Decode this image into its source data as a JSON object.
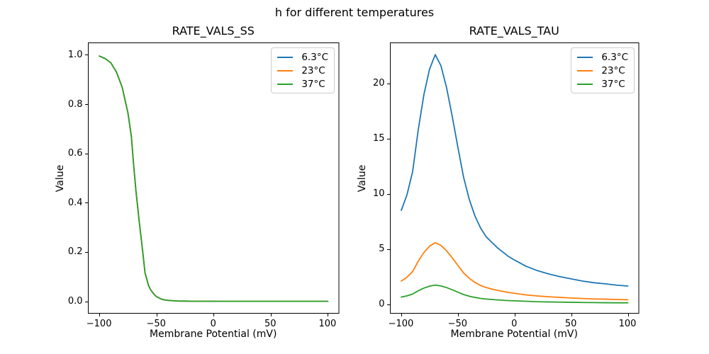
{
  "figure": {
    "suptitle": "h for different temperatures",
    "background": "#ffffff"
  },
  "palette": {
    "series_blue": "#1f77b4",
    "series_orange": "#ff7f0e",
    "series_green": "#2ca02c",
    "axis_color": "#000000",
    "legend_border": "#cccccc"
  },
  "legend": {
    "labels": [
      "6.3°C",
      "23°C",
      "37°C"
    ],
    "position": "upper right"
  },
  "chart_data": [
    {
      "type": "line",
      "title": "RATE_VALS_SS",
      "xlabel": "Membrane Potential (mV)",
      "ylabel": "Value",
      "xlim": [
        -110,
        110
      ],
      "ylim": [
        -0.05,
        1.05
      ],
      "xticks": [
        -100,
        -50,
        0,
        50,
        100
      ],
      "xtick_labels": [
        "−100",
        "−50",
        "0",
        "50",
        "100"
      ],
      "yticks": [
        0.0,
        0.2,
        0.4,
        0.6,
        0.8,
        1.0
      ],
      "ytick_labels": [
        "0.0",
        "0.2",
        "0.4",
        "0.6",
        "0.8",
        "1.0"
      ],
      "grid": false,
      "legend_position": "upper right",
      "note": "all three temperature curves overlap exactly; green drawn on top",
      "x": [
        -100,
        -95,
        -90,
        -85,
        -80,
        -75,
        -72,
        -70,
        -68,
        -65,
        -62,
        -60,
        -57,
        -55,
        -52,
        -50,
        -47,
        -45,
        -42,
        -40,
        -35,
        -30,
        -25,
        -20,
        -15,
        -10,
        -5,
        0,
        10,
        20,
        30,
        40,
        50,
        60,
        70,
        80,
        90,
        100
      ],
      "series": [
        {
          "name": "6.3°C",
          "color": "#1f77b4",
          "values": [
            0.995,
            0.985,
            0.968,
            0.93,
            0.868,
            0.765,
            0.67,
            0.555,
            0.45,
            0.32,
            0.2,
            0.115,
            0.065,
            0.046,
            0.028,
            0.019,
            0.012,
            0.008,
            0.005,
            0.004,
            0.002,
            0.001,
            0.001,
            0.0005,
            0.0003,
            0.0002,
            0.0001,
            0.0001,
            0,
            0,
            0,
            0,
            0,
            0,
            0,
            0,
            0,
            0
          ]
        },
        {
          "name": "23°C",
          "color": "#ff7f0e",
          "values": [
            0.995,
            0.985,
            0.968,
            0.93,
            0.868,
            0.765,
            0.67,
            0.555,
            0.45,
            0.32,
            0.2,
            0.115,
            0.065,
            0.046,
            0.028,
            0.019,
            0.012,
            0.008,
            0.005,
            0.004,
            0.002,
            0.001,
            0.001,
            0.0005,
            0.0003,
            0.0002,
            0.0001,
            0.0001,
            0,
            0,
            0,
            0,
            0,
            0,
            0,
            0,
            0,
            0
          ]
        },
        {
          "name": "37°C",
          "color": "#2ca02c",
          "values": [
            0.995,
            0.985,
            0.968,
            0.93,
            0.868,
            0.765,
            0.67,
            0.555,
            0.45,
            0.32,
            0.2,
            0.115,
            0.065,
            0.046,
            0.028,
            0.019,
            0.012,
            0.008,
            0.005,
            0.004,
            0.002,
            0.001,
            0.001,
            0.0005,
            0.0003,
            0.0002,
            0.0001,
            0.0001,
            0,
            0,
            0,
            0,
            0,
            0,
            0,
            0,
            0,
            0
          ]
        }
      ]
    },
    {
      "type": "line",
      "title": "RATE_VALS_TAU",
      "xlabel": "Membrane Potential (mV)",
      "ylabel": "Value",
      "xlim": [
        -110,
        110
      ],
      "ylim": [
        -0.85,
        23.7
      ],
      "xticks": [
        -100,
        -50,
        0,
        50,
        100
      ],
      "xtick_labels": [
        "−100",
        "−50",
        "0",
        "50",
        "100"
      ],
      "yticks": [
        0,
        5,
        10,
        15,
        20
      ],
      "ytick_labels": [
        "0",
        "5",
        "10",
        "15",
        "20"
      ],
      "grid": false,
      "legend_position": "upper right",
      "note": "bell-shaped curves peaking at -70 mV; peaks: 6.3°C ≈ 22.6, 23°C ≈ 5.6, 37°C ≈ 1.7",
      "x": [
        -100,
        -95,
        -90,
        -85,
        -80,
        -75,
        -70,
        -65,
        -60,
        -55,
        -50,
        -45,
        -40,
        -35,
        -30,
        -25,
        -20,
        -15,
        -10,
        -5,
        0,
        10,
        20,
        30,
        40,
        50,
        60,
        70,
        80,
        90,
        100
      ],
      "series": [
        {
          "name": "6.3°C",
          "color": "#1f77b4",
          "values": [
            8.5,
            9.9,
            12.0,
            15.8,
            19.0,
            21.3,
            22.6,
            21.6,
            19.6,
            17.0,
            14.2,
            11.5,
            9.5,
            8.0,
            6.9,
            6.1,
            5.6,
            5.1,
            4.7,
            4.3,
            4.0,
            3.45,
            3.05,
            2.75,
            2.5,
            2.3,
            2.1,
            1.95,
            1.85,
            1.73,
            1.65
          ]
        },
        {
          "name": "23°C",
          "color": "#ff7f0e",
          "values": [
            2.1,
            2.44,
            2.96,
            3.9,
            4.69,
            5.26,
            5.58,
            5.33,
            4.84,
            4.2,
            3.51,
            2.84,
            2.35,
            1.98,
            1.7,
            1.51,
            1.38,
            1.26,
            1.16,
            1.06,
            0.99,
            0.85,
            0.75,
            0.68,
            0.62,
            0.57,
            0.52,
            0.48,
            0.46,
            0.43,
            0.41
          ]
        },
        {
          "name": "37°C",
          "color": "#2ca02c",
          "values": [
            0.65,
            0.76,
            0.92,
            1.22,
            1.46,
            1.64,
            1.74,
            1.66,
            1.51,
            1.31,
            1.09,
            0.88,
            0.73,
            0.62,
            0.53,
            0.47,
            0.43,
            0.39,
            0.36,
            0.33,
            0.31,
            0.27,
            0.23,
            0.21,
            0.19,
            0.18,
            0.16,
            0.15,
            0.14,
            0.13,
            0.13
          ]
        }
      ]
    }
  ]
}
